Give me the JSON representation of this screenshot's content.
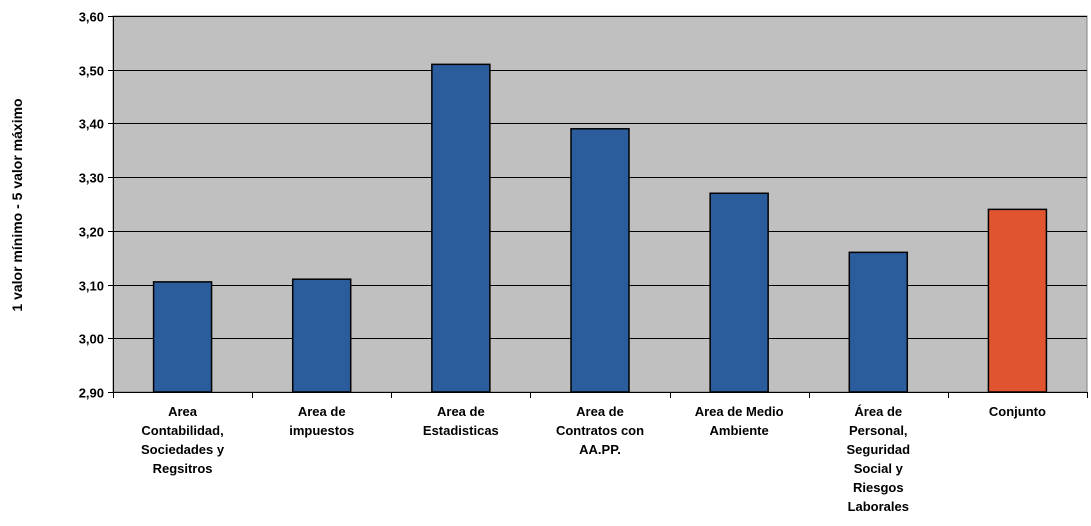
{
  "chart_data": {
    "type": "bar",
    "categories": [
      [
        "Area",
        "Contabilidad,",
        "Sociedades y",
        "Regsitros"
      ],
      [
        "Area de",
        "impuestos"
      ],
      [
        "Area de",
        "Estadisticas"
      ],
      [
        "Area de",
        "Contratos con",
        "AA.PP."
      ],
      [
        "Area de Medio",
        "Ambiente"
      ],
      [
        "Área de",
        "Personal,",
        "Seguridad",
        "Social y",
        "Riesgos",
        "Laborales"
      ],
      [
        "Conjunto"
      ]
    ],
    "values": [
      3.105,
      3.11,
      3.51,
      3.39,
      3.27,
      3.16,
      3.24
    ],
    "bar_colors": [
      "#2b5c9c",
      "#2b5c9c",
      "#2b5c9c",
      "#2b5c9c",
      "#2b5c9c",
      "#2b5c9c",
      "#e05530"
    ],
    "ylabel": "1 valor mínimo  -  5 valor máximo",
    "ylim": [
      2.9,
      3.6
    ],
    "yticks": [
      "2,90",
      "3,00",
      "3,10",
      "3,20",
      "3,30",
      "3,40",
      "3,50",
      "3,60"
    ],
    "grid": true,
    "plot_background": "#c0c0c0"
  }
}
